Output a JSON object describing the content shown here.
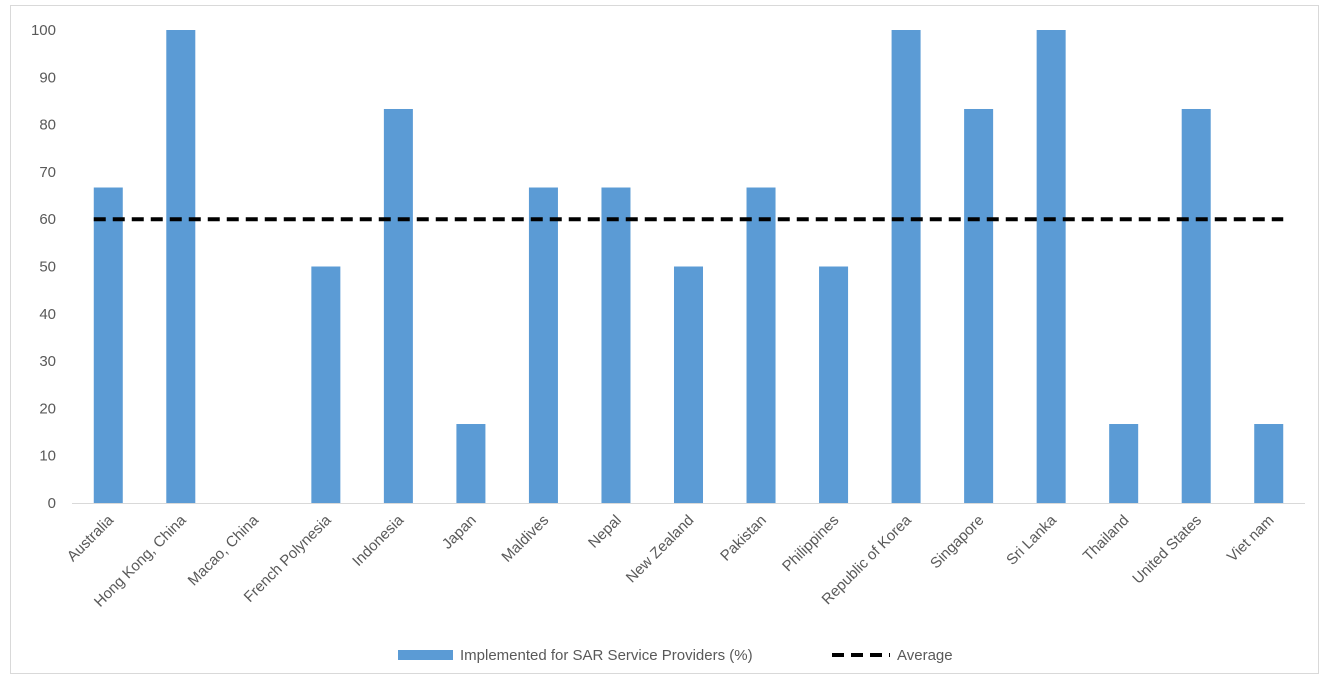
{
  "chart_data": {
    "type": "bar",
    "categories": [
      "Australia",
      "Hong Kong, China",
      "Macao, China",
      "French Polynesia",
      "Indonesia",
      "Japan",
      "Maldives",
      "Nepal",
      "New Zealand",
      "Pakistan",
      "Philippines",
      "Republic of Korea",
      "Singapore",
      "Sri Lanka",
      "Thailand",
      "United States",
      "Viet nam"
    ],
    "series": [
      {
        "name": "Implemented for SAR Service Providers (%)",
        "values": [
          66.7,
          100,
          0,
          50,
          83.3,
          16.7,
          66.7,
          66.7,
          50,
          66.7,
          50,
          100,
          83.3,
          100,
          16.7,
          83.3,
          16.7
        ],
        "color": "#5b9bd5"
      }
    ],
    "average": {
      "name": "Average",
      "value": 60,
      "color": "#000000"
    },
    "ylim": [
      0,
      100
    ],
    "yticks": [
      0,
      10,
      20,
      30,
      40,
      50,
      60,
      70,
      80,
      90,
      100
    ],
    "gridlines": false,
    "legend_position": "bottom"
  }
}
